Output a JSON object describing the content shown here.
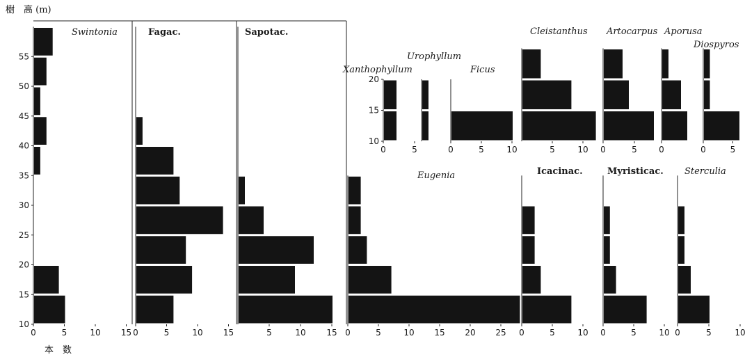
{
  "y_axis_label": "樹　高 (m)",
  "x_axis_label": "本　数",
  "chart_data": [
    {
      "type": "bar",
      "orientation": "horizontal",
      "title": "Swintonia",
      "title_style": "italic",
      "categories": [
        "10-15",
        "15-20",
        "20-25",
        "25-30",
        "30-35",
        "35-40",
        "40-45",
        "45-50",
        "50-55",
        "55-60"
      ],
      "values": [
        5,
        4,
        0,
        0,
        0,
        1,
        2,
        1,
        2,
        3
      ],
      "xlim": [
        0,
        15
      ],
      "xticks": [
        "0",
        "5",
        "10",
        "15"
      ],
      "ylim": [
        10,
        60
      ],
      "yticks": [
        "10",
        "15",
        "20",
        "25",
        "30",
        "35",
        "40",
        "45",
        "50",
        "55"
      ]
    },
    {
      "type": "bar",
      "orientation": "horizontal",
      "title": "Fagac.",
      "title_style": "bold",
      "categories": [
        "10-15",
        "15-20",
        "20-25",
        "25-30",
        "30-35",
        "35-40",
        "40-45"
      ],
      "values": [
        6,
        9,
        8,
        14,
        7,
        6,
        1
      ],
      "xlim": [
        0,
        15
      ],
      "xticks": [
        "0",
        "5",
        "10",
        "15"
      ],
      "ylim": [
        10,
        60
      ]
    },
    {
      "type": "bar",
      "orientation": "horizontal",
      "title": "Sapotac.",
      "title_style": "bold",
      "categories": [
        "10-15",
        "15-20",
        "20-25",
        "25-30",
        "30-35"
      ],
      "values": [
        15,
        9,
        12,
        4,
        1
      ],
      "xlim": [
        0,
        15
      ],
      "xticks": [
        "5",
        "10",
        "15"
      ],
      "ylim": [
        10,
        60
      ]
    },
    {
      "type": "bar",
      "orientation": "horizontal",
      "title": "Eugenia",
      "title_style": "italic",
      "categories": [
        "10-15",
        "15-20",
        "20-25",
        "25-30",
        "30-35"
      ],
      "values": [
        28,
        7,
        3,
        2,
        2
      ],
      "xlim": [
        0,
        28
      ],
      "xticks": [
        "0",
        "5",
        "10",
        "15",
        "20",
        "25"
      ],
      "ylim": [
        10,
        35
      ]
    },
    {
      "type": "bar",
      "orientation": "horizontal",
      "title": "Xanthophyllum",
      "title_style": "italic",
      "categories": [
        "10-15",
        "15-20"
      ],
      "values": [
        2,
        2
      ],
      "xlim": [
        0,
        6
      ],
      "xticks": [
        "0",
        "5"
      ],
      "ylim": [
        10,
        20
      ],
      "yticks": [
        "10",
        "15",
        "20"
      ]
    },
    {
      "type": "bar",
      "orientation": "horizontal",
      "title": "Urophyllum",
      "title_style": "italic",
      "categories": [
        "10-15",
        "15-20"
      ],
      "values": [
        1,
        1
      ],
      "xlim": [
        0,
        5
      ],
      "ylim": [
        10,
        20
      ]
    },
    {
      "type": "bar",
      "orientation": "horizontal",
      "title": "Ficus",
      "title_style": "italic",
      "categories": [
        "10-15",
        "15-20"
      ],
      "values": [
        10,
        0
      ],
      "xlim": [
        0,
        11
      ],
      "xticks": [
        "0",
        "5",
        "10"
      ],
      "ylim": [
        10,
        20
      ]
    },
    {
      "type": "bar",
      "orientation": "horizontal",
      "title": "Cleistanthus",
      "title_style": "italic",
      "categories": [
        "10-15",
        "15-20",
        "20-25"
      ],
      "values": [
        12,
        8,
        3
      ],
      "xlim": [
        0,
        12
      ],
      "xticks": [
        "5",
        "10"
      ],
      "ylim": [
        10,
        25
      ]
    },
    {
      "type": "bar",
      "orientation": "horizontal",
      "title": "Artocarpus",
      "title_style": "italic",
      "categories": [
        "10-15",
        "15-20",
        "20-25"
      ],
      "values": [
        8,
        4,
        3
      ],
      "xlim": [
        0,
        8
      ],
      "xticks": [
        "0",
        "5"
      ],
      "ylim": [
        10,
        25
      ]
    },
    {
      "type": "bar",
      "orientation": "horizontal",
      "title": "Aporusa",
      "title_style": "italic",
      "categories": [
        "10-15",
        "15-20",
        "20-25"
      ],
      "values": [
        4,
        3,
        1
      ],
      "xlim": [
        0,
        5
      ],
      "xticks": [
        "0"
      ],
      "ylim": [
        10,
        25
      ]
    },
    {
      "type": "bar",
      "orientation": "horizontal",
      "title": "Diospyros",
      "title_style": "italic",
      "categories": [
        "10-15",
        "15-20",
        "20-25"
      ],
      "values": [
        6,
        1,
        1
      ],
      "xlim": [
        0,
        6.5
      ],
      "xticks": [
        "0",
        "5"
      ],
      "ylim": [
        10,
        25
      ]
    },
    {
      "type": "bar",
      "orientation": "horizontal",
      "title": "Icacinac.",
      "title_style": "bold",
      "categories": [
        "10-15",
        "15-20",
        "20-25",
        "25-30"
      ],
      "values": [
        8,
        3,
        2,
        2
      ],
      "xlim": [
        0,
        12
      ],
      "xticks": [
        "0",
        "5",
        "10"
      ],
      "ylim": [
        10,
        35
      ]
    },
    {
      "type": "bar",
      "orientation": "horizontal",
      "title": "Myristicac.",
      "title_style": "bold",
      "categories": [
        "10-15",
        "15-20",
        "20-25",
        "25-30"
      ],
      "values": [
        7,
        2,
        1,
        1
      ],
      "xlim": [
        0,
        10
      ],
      "xticks": [
        "0",
        "5",
        "10"
      ],
      "ylim": [
        10,
        35
      ]
    },
    {
      "type": "bar",
      "orientation": "horizontal",
      "title": "Sterculia",
      "title_style": "italic",
      "categories": [
        "10-15",
        "15-20",
        "20-25",
        "25-30"
      ],
      "values": [
        5,
        2,
        1,
        1
      ],
      "xlim": [
        0,
        10
      ],
      "xticks": [
        "0",
        "5",
        "10"
      ],
      "ylim": [
        10,
        35
      ]
    }
  ]
}
